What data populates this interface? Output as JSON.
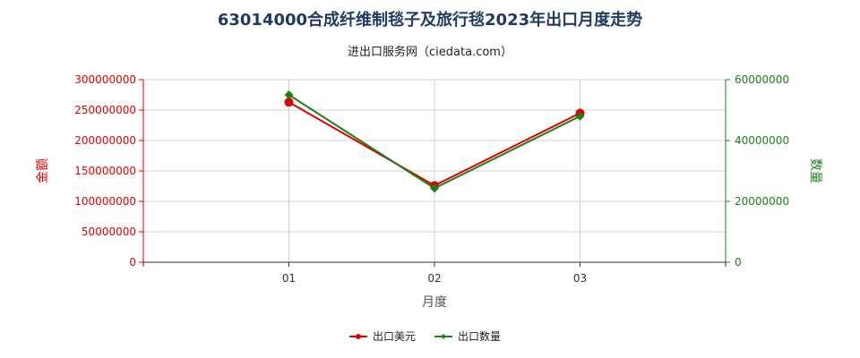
{
  "chart_data": {
    "type": "line",
    "title": "63014000合成纤维制毯子及旅行毯2023年出口月度走势",
    "subtitle": "进出口服务网（ciedata.com）",
    "xlabel": "月度",
    "ylabel_left": "金额",
    "ylabel_right": "数量",
    "categories": [
      "01",
      "02",
      "03"
    ],
    "y_left": {
      "range": [
        0,
        300000000
      ],
      "ticks": [
        "0",
        "50000000",
        "100000000",
        "150000000",
        "200000000",
        "250000000",
        "300000000"
      ]
    },
    "y_right": {
      "range": [
        0,
        60000000
      ],
      "ticks": [
        "0",
        "20000000",
        "40000000",
        "60000000"
      ]
    },
    "series": [
      {
        "name": "出口美元",
        "axis": "left",
        "color": "#e00000",
        "marker": "circle",
        "values": [
          263000000,
          126000000,
          245000000
        ]
      },
      {
        "name": "出口数量",
        "axis": "right",
        "color": "#1a7f1a",
        "marker": "diamond",
        "values": [
          55000000,
          24300000,
          48000000
        ]
      }
    ],
    "grid": true,
    "legend": "bottom-center"
  }
}
